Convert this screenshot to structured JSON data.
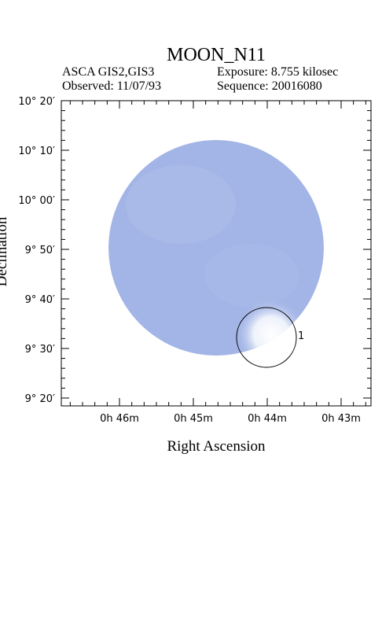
{
  "header": {
    "title": "MOON_N11",
    "instrument": "ASCA GIS2,GIS3",
    "exposure": "Exposure: 8.755 kilosec",
    "observed": "Observed: 11/07/93",
    "sequence": "Sequence: 20016080"
  },
  "axes": {
    "x_label": "Right Ascension",
    "y_label": "Declination",
    "x_ticks": [
      "0h 46m",
      "0h 45m",
      "0h 44m",
      "0h 43m"
    ],
    "y_ticks": [
      "10° 20′",
      "10° 10′",
      "10° 00′",
      "9° 50′",
      "9° 40′",
      "9° 30′",
      "9° 20′"
    ]
  },
  "sources": [
    {
      "label": "1"
    }
  ]
}
